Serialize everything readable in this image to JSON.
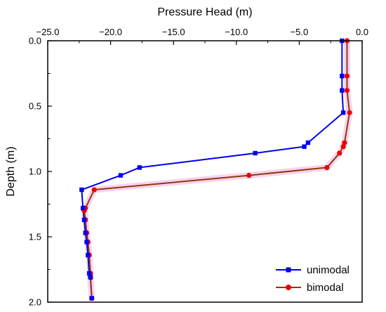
{
  "chart_data": {
    "type": "line",
    "xlabel": "Pressure Head (m)",
    "ylabel": "Depth (m)",
    "xlim": [
      -25,
      0
    ],
    "ylim": [
      0,
      2.0
    ],
    "x_axis_position": "top",
    "y_inverted": true,
    "xticks": [
      -25,
      -20,
      -15,
      -10,
      -5,
      0
    ],
    "xtick_labels": [
      "−25.0",
      "−20.0",
      "−15.0",
      "−10.0",
      "−5.0",
      "0.0"
    ],
    "yticks": [
      0,
      0.5,
      1.0,
      1.5,
      2.0
    ],
    "ytick_labels": [
      "0.0",
      "0.5",
      "1.0",
      "1.5",
      "2.0"
    ],
    "grid": false,
    "legend_position": "bottom-right",
    "series": [
      {
        "name": "unimodal",
        "color": "#0000ee",
        "marker": "square",
        "points": [
          {
            "x": -1.6,
            "y": 0.0
          },
          {
            "x": -1.6,
            "y": 0.27
          },
          {
            "x": -1.6,
            "y": 0.38
          },
          {
            "x": -1.5,
            "y": 0.55
          },
          {
            "x": -4.3,
            "y": 0.78
          },
          {
            "x": -4.6,
            "y": 0.81
          },
          {
            "x": -8.5,
            "y": 0.86
          },
          {
            "x": -17.7,
            "y": 0.97
          },
          {
            "x": -19.2,
            "y": 1.03
          },
          {
            "x": -22.3,
            "y": 1.14
          },
          {
            "x": -22.2,
            "y": 1.28
          },
          {
            "x": -22.1,
            "y": 1.37
          },
          {
            "x": -22.0,
            "y": 1.47
          },
          {
            "x": -21.9,
            "y": 1.54
          },
          {
            "x": -21.8,
            "y": 1.64
          },
          {
            "x": -21.7,
            "y": 1.78
          },
          {
            "x": -21.6,
            "y": 1.81
          },
          {
            "x": -21.5,
            "y": 1.97
          }
        ]
      },
      {
        "name": "bimodal",
        "color": "#ee0000",
        "line_color": "#8b3a0f",
        "marker": "circle",
        "points": [
          {
            "x": -1.2,
            "y": 0.0
          },
          {
            "x": -1.2,
            "y": 0.27
          },
          {
            "x": -1.2,
            "y": 0.38
          },
          {
            "x": -1.0,
            "y": 0.55
          },
          {
            "x": -1.4,
            "y": 0.78
          },
          {
            "x": -1.5,
            "y": 0.81
          },
          {
            "x": -1.8,
            "y": 0.86
          },
          {
            "x": -2.8,
            "y": 0.97
          },
          {
            "x": -9.0,
            "y": 1.03
          },
          {
            "x": -21.3,
            "y": 1.14
          },
          {
            "x": -22.0,
            "y": 1.28
          },
          {
            "x": -22.1,
            "y": 1.3
          },
          {
            "x": -22.0,
            "y": 1.37
          },
          {
            "x": -21.9,
            "y": 1.47
          },
          {
            "x": -21.8,
            "y": 1.54
          },
          {
            "x": -21.7,
            "y": 1.64
          },
          {
            "x": -21.6,
            "y": 1.78
          },
          {
            "x": -21.6,
            "y": 1.81
          },
          {
            "x": -21.5,
            "y": 1.97
          }
        ]
      }
    ]
  }
}
